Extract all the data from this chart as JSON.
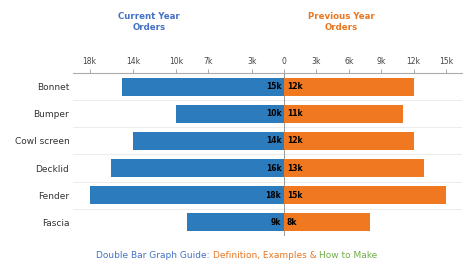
{
  "categories": [
    "Bonnet",
    "Bumper",
    "Cowl screen",
    "Decklid",
    "Fender",
    "Fascia"
  ],
  "current_year": [
    15,
    10,
    14,
    16,
    18,
    9
  ],
  "previous_year": [
    12,
    11,
    12,
    13,
    15,
    8
  ],
  "blue_color": "#2B7BBD",
  "orange_color": "#F07820",
  "background_color": "#FFFFFF",
  "title_parts": [
    {
      "text": "Double Bar Graph Guide: ",
      "color": "#4472C4"
    },
    {
      "text": "Definition, Examples & ",
      "color": "#E87722"
    },
    {
      "text": "How to Make",
      "color": "#70AD47"
    }
  ],
  "legend_left_title": "Current Year\nOrders",
  "legend_right_title": "Previous Year\nOrders",
  "legend_left_color": "#4472C4",
  "legend_right_color": "#E87722",
  "x_ticks": [
    -18,
    -14,
    -10,
    -7,
    -3,
    0,
    3,
    6,
    9,
    12,
    15
  ],
  "x_tick_labels": [
    "18k",
    "14k",
    "10k",
    "7k",
    "3k",
    "0",
    "3k",
    "6k",
    "9k",
    "12k",
    "15k"
  ],
  "xlim": [
    -19.5,
    16.5
  ],
  "bar_height": 0.65
}
